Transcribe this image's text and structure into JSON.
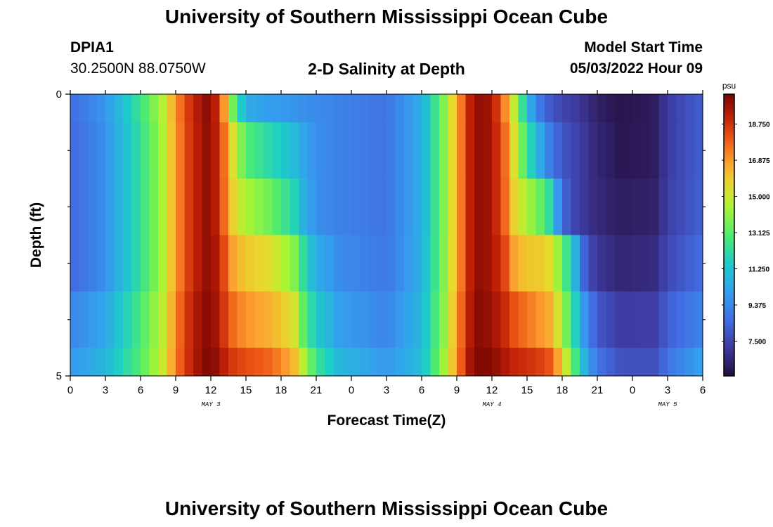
{
  "header": {
    "title": "University of Southern Mississippi Ocean Cube",
    "station_id": "DPIA1",
    "station_coords": "30.2500N  88.0750W",
    "chart_title": "2-D Salinity at Depth",
    "model_start_label": "Model Start Time",
    "model_start_value": "05/03/2022 Hour 09"
  },
  "footer": {
    "title": "University of Southern Mississippi Ocean Cube"
  },
  "chart_data": {
    "type": "heatmap",
    "title": "2-D Salinity at Depth",
    "xlabel": "Forecast Time(Z)",
    "ylabel": "Depth (ft)",
    "x_tick_labels": [
      "0",
      "3",
      "6",
      "9",
      "12",
      "15",
      "18",
      "21",
      "0",
      "3",
      "6",
      "9",
      "12",
      "15",
      "18",
      "21",
      "0",
      "3",
      "6"
    ],
    "day_labels": [
      {
        "label": "MAY 3",
        "at_tick": 4
      },
      {
        "label": "MAY 4",
        "at_tick": 12
      },
      {
        "label": "MAY 5",
        "at_tick": 17
      }
    ],
    "y_tick_labels": [
      "0",
      "5"
    ],
    "ylim": [
      0,
      5
    ],
    "colorbar": {
      "unit": "psu",
      "range": [
        5.7,
        20.3
      ],
      "tick_labels": [
        "18.750",
        "16.875",
        "15.000",
        "13.125",
        "11.250",
        "9.375",
        "7.500"
      ],
      "tick_values": [
        18.75,
        16.875,
        15.0,
        13.125,
        11.25,
        9.375,
        7.5
      ]
    },
    "time_hours": [
      0,
      3,
      6,
      8,
      9,
      10,
      11,
      12,
      13,
      14,
      15,
      17,
      19,
      20,
      21,
      23,
      27,
      30,
      32,
      33,
      34,
      35,
      36,
      37,
      38,
      39,
      40,
      41,
      42,
      43,
      44,
      45,
      47,
      50,
      51,
      54
    ],
    "depth_ft": [
      0,
      1,
      2,
      3,
      4,
      5
    ],
    "salinity_psu": [
      [
        8.6,
        9.8,
        12.5,
        14.8,
        17.0,
        18.5,
        19.5,
        20.2,
        17.5,
        13.0,
        10.5,
        10.0,
        9.8,
        9.6,
        9.5,
        9.2,
        8.8,
        10.5,
        14.0,
        16.5,
        19.0,
        20.0,
        19.5,
        17.5,
        14.5,
        11.0,
        9.0,
        8.0,
        7.5,
        7.2,
        6.8,
        6.3,
        5.9,
        6.2,
        7.2,
        8.2
      ],
      [
        8.4,
        9.6,
        12.3,
        14.6,
        16.9,
        18.4,
        19.4,
        20.1,
        18.0,
        15.0,
        13.0,
        12.0,
        11.0,
        10.2,
        9.6,
        9.2,
        8.8,
        10.5,
        14.0,
        16.5,
        19.0,
        20.0,
        19.5,
        18.0,
        15.0,
        12.5,
        10.5,
        9.0,
        8.0,
        7.5,
        7.0,
        6.5,
        6.0,
        6.2,
        7.2,
        8.2
      ],
      [
        8.4,
        9.6,
        12.3,
        14.6,
        16.9,
        18.4,
        19.4,
        20.1,
        18.0,
        15.5,
        14.5,
        13.5,
        12.0,
        10.5,
        9.6,
        9.2,
        8.8,
        10.5,
        14.0,
        16.5,
        19.0,
        20.0,
        19.5,
        18.0,
        15.5,
        14.5,
        13.5,
        12.0,
        8.5,
        7.5,
        7.0,
        6.6,
        6.2,
        6.4,
        7.3,
        8.3
      ],
      [
        8.4,
        9.6,
        12.3,
        14.6,
        16.9,
        18.4,
        19.4,
        20.1,
        18.5,
        16.5,
        16.0,
        15.5,
        14.0,
        12.0,
        10.5,
        9.5,
        8.9,
        10.6,
        14.0,
        16.5,
        19.0,
        20.0,
        19.5,
        18.5,
        16.5,
        16.0,
        16.0,
        15.5,
        13.5,
        11.0,
        8.0,
        7.0,
        6.5,
        6.7,
        7.6,
        8.6
      ],
      [
        9.3,
        10.3,
        12.8,
        15.0,
        17.2,
        18.7,
        19.6,
        20.2,
        18.8,
        17.5,
        17.0,
        16.5,
        15.5,
        13.0,
        11.5,
        10.0,
        9.3,
        10.8,
        14.2,
        16.8,
        19.2,
        20.1,
        19.7,
        19.0,
        18.0,
        17.5,
        17.0,
        16.5,
        14.5,
        12.0,
        9.5,
        8.0,
        7.2,
        7.3,
        8.2,
        9.3
      ],
      [
        9.8,
        10.8,
        13.0,
        15.2,
        17.3,
        18.8,
        19.7,
        20.3,
        19.3,
        18.5,
        18.2,
        17.8,
        16.5,
        14.5,
        12.5,
        10.8,
        9.8,
        11.0,
        14.5,
        17.0,
        19.5,
        20.2,
        20.0,
        19.5,
        19.0,
        18.8,
        18.5,
        18.0,
        16.0,
        13.0,
        10.5,
        8.8,
        7.8,
        7.8,
        8.8,
        10.2
      ]
    ]
  }
}
